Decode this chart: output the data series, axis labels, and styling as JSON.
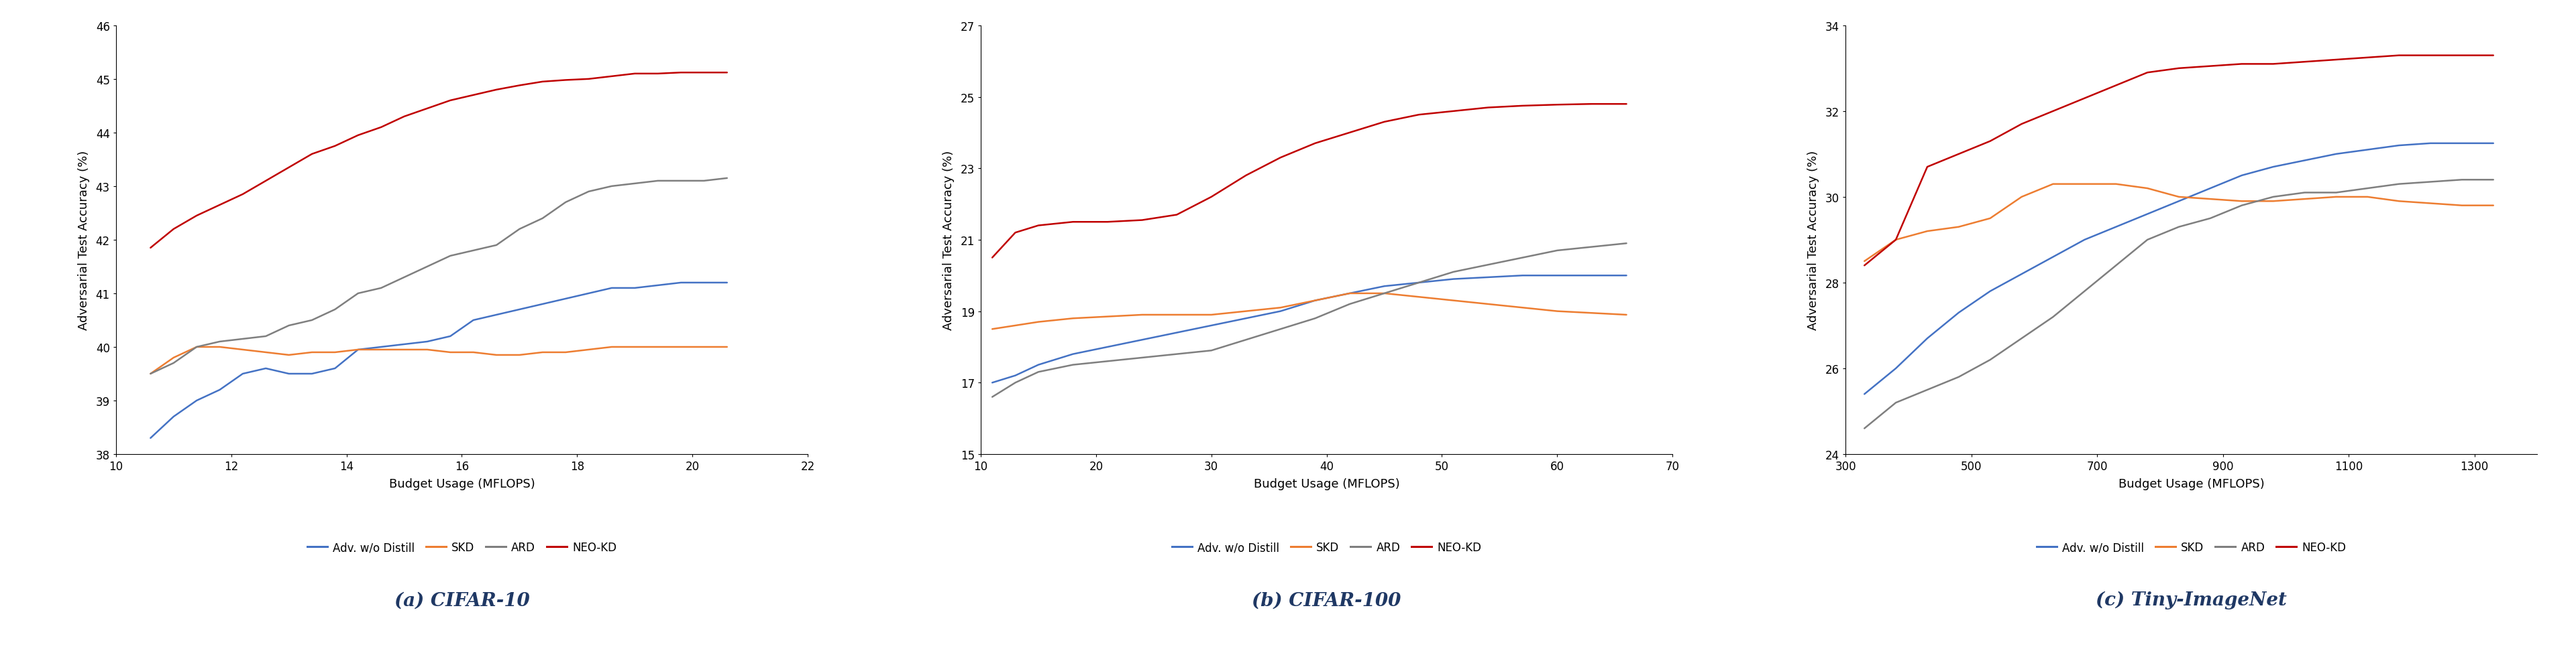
{
  "cifar10": {
    "title": "(a) CIFAR-10",
    "xlabel": "Budget Usage (MFLOPS)",
    "ylabel": "Adversarial Test Accuracy (%)",
    "xlim": [
      10,
      22
    ],
    "ylim": [
      38,
      46
    ],
    "xticks": [
      10,
      12,
      14,
      16,
      18,
      20,
      22
    ],
    "yticks": [
      38,
      39,
      40,
      41,
      42,
      43,
      44,
      45,
      46
    ],
    "series": {
      "Adv. w/o Distill": {
        "color": "#4472C4",
        "x": [
          10.6,
          11.0,
          11.4,
          11.8,
          12.2,
          12.6,
          13.0,
          13.4,
          13.8,
          14.2,
          14.6,
          15.0,
          15.4,
          15.8,
          16.2,
          16.6,
          17.0,
          17.4,
          17.8,
          18.2,
          18.6,
          19.0,
          19.4,
          19.8,
          20.2,
          20.6
        ],
        "y": [
          38.3,
          38.7,
          39.0,
          39.2,
          39.5,
          39.6,
          39.5,
          39.5,
          39.6,
          39.95,
          40.0,
          40.05,
          40.1,
          40.2,
          40.5,
          40.6,
          40.7,
          40.8,
          40.9,
          41.0,
          41.1,
          41.1,
          41.15,
          41.2,
          41.2,
          41.2
        ]
      },
      "SKD": {
        "color": "#ED7D31",
        "x": [
          10.6,
          11.0,
          11.4,
          11.8,
          12.2,
          12.6,
          13.0,
          13.4,
          13.8,
          14.2,
          14.6,
          15.0,
          15.4,
          15.8,
          16.2,
          16.6,
          17.0,
          17.4,
          17.8,
          18.2,
          18.6,
          19.0,
          19.4,
          19.8,
          20.2,
          20.6
        ],
        "y": [
          39.5,
          39.8,
          40.0,
          40.0,
          39.95,
          39.9,
          39.85,
          39.9,
          39.9,
          39.95,
          39.95,
          39.95,
          39.95,
          39.9,
          39.9,
          39.85,
          39.85,
          39.9,
          39.9,
          39.95,
          40.0,
          40.0,
          40.0,
          40.0,
          40.0,
          40.0
        ]
      },
      "ARD": {
        "color": "#7F7F7F",
        "x": [
          10.6,
          11.0,
          11.4,
          11.8,
          12.2,
          12.6,
          13.0,
          13.4,
          13.8,
          14.2,
          14.6,
          15.0,
          15.4,
          15.8,
          16.2,
          16.6,
          17.0,
          17.4,
          17.8,
          18.2,
          18.6,
          19.0,
          19.4,
          19.8,
          20.2,
          20.6
        ],
        "y": [
          39.5,
          39.7,
          40.0,
          40.1,
          40.15,
          40.2,
          40.4,
          40.5,
          40.7,
          41.0,
          41.1,
          41.3,
          41.5,
          41.7,
          41.8,
          41.9,
          42.2,
          42.4,
          42.7,
          42.9,
          43.0,
          43.05,
          43.1,
          43.1,
          43.1,
          43.15
        ]
      },
      "NEO-KD": {
        "color": "#C00000",
        "x": [
          10.6,
          11.0,
          11.4,
          11.8,
          12.2,
          12.6,
          13.0,
          13.4,
          13.8,
          14.2,
          14.6,
          15.0,
          15.4,
          15.8,
          16.2,
          16.6,
          17.0,
          17.4,
          17.8,
          18.2,
          18.6,
          19.0,
          19.4,
          19.8,
          20.2,
          20.6
        ],
        "y": [
          41.85,
          42.2,
          42.45,
          42.65,
          42.85,
          43.1,
          43.35,
          43.6,
          43.75,
          43.95,
          44.1,
          44.3,
          44.45,
          44.6,
          44.7,
          44.8,
          44.88,
          44.95,
          44.98,
          45.0,
          45.05,
          45.1,
          45.1,
          45.12,
          45.12,
          45.12
        ]
      }
    }
  },
  "cifar100": {
    "title": "(b) CIFAR-100",
    "xlabel": "Budget Usage (MFLOPS)",
    "ylabel": "Adversarial Test Accuracy (%)",
    "xlim": [
      10,
      70
    ],
    "ylim": [
      15,
      27
    ],
    "xticks": [
      10,
      20,
      30,
      40,
      50,
      60,
      70
    ],
    "yticks": [
      15,
      17,
      19,
      21,
      23,
      25,
      27
    ],
    "series": {
      "Adv. w/o Distill": {
        "color": "#4472C4",
        "x": [
          11,
          13,
          15,
          18,
          21,
          24,
          27,
          30,
          33,
          36,
          39,
          42,
          45,
          48,
          51,
          54,
          57,
          60,
          63,
          66
        ],
        "y": [
          17.0,
          17.2,
          17.5,
          17.8,
          18.0,
          18.2,
          18.4,
          18.6,
          18.8,
          19.0,
          19.3,
          19.5,
          19.7,
          19.8,
          19.9,
          19.95,
          20.0,
          20.0,
          20.0,
          20.0
        ]
      },
      "SKD": {
        "color": "#ED7D31",
        "x": [
          11,
          13,
          15,
          18,
          21,
          24,
          27,
          30,
          33,
          36,
          39,
          42,
          45,
          48,
          51,
          54,
          57,
          60,
          63,
          66
        ],
        "y": [
          18.5,
          18.6,
          18.7,
          18.8,
          18.85,
          18.9,
          18.9,
          18.9,
          19.0,
          19.1,
          19.3,
          19.5,
          19.5,
          19.4,
          19.3,
          19.2,
          19.1,
          19.0,
          18.95,
          18.9
        ]
      },
      "ARD": {
        "color": "#7F7F7F",
        "x": [
          11,
          13,
          15,
          18,
          21,
          24,
          27,
          30,
          33,
          36,
          39,
          42,
          45,
          48,
          51,
          54,
          57,
          60,
          63,
          66
        ],
        "y": [
          16.6,
          17.0,
          17.3,
          17.5,
          17.6,
          17.7,
          17.8,
          17.9,
          18.2,
          18.5,
          18.8,
          19.2,
          19.5,
          19.8,
          20.1,
          20.3,
          20.5,
          20.7,
          20.8,
          20.9
        ]
      },
      "NEO-KD": {
        "color": "#C00000",
        "x": [
          11,
          13,
          15,
          18,
          21,
          24,
          27,
          30,
          33,
          36,
          39,
          42,
          45,
          48,
          51,
          54,
          57,
          60,
          63,
          66
        ],
        "y": [
          20.5,
          21.2,
          21.4,
          21.5,
          21.5,
          21.55,
          21.7,
          22.2,
          22.8,
          23.3,
          23.7,
          24.0,
          24.3,
          24.5,
          24.6,
          24.7,
          24.75,
          24.78,
          24.8,
          24.8
        ]
      }
    }
  },
  "tiny_imagenet": {
    "title": "(c) Tiny-ImageNet",
    "xlabel": "Budget Usage (MFLOPS)",
    "ylabel": "Adversarial Test Accuracy (%)",
    "xlim": [
      300,
      1400
    ],
    "ylim": [
      24,
      34
    ],
    "xticks": [
      300,
      500,
      700,
      900,
      1100,
      1300
    ],
    "yticks": [
      24,
      26,
      28,
      30,
      32,
      34
    ],
    "series": {
      "Adv. w/o Distill": {
        "color": "#4472C4",
        "x": [
          330,
          380,
          430,
          480,
          530,
          580,
          630,
          680,
          730,
          780,
          830,
          880,
          930,
          980,
          1030,
          1080,
          1130,
          1180,
          1230,
          1280,
          1330
        ],
        "y": [
          25.4,
          26.0,
          26.7,
          27.3,
          27.8,
          28.2,
          28.6,
          29.0,
          29.3,
          29.6,
          29.9,
          30.2,
          30.5,
          30.7,
          30.85,
          31.0,
          31.1,
          31.2,
          31.25,
          31.25,
          31.25
        ]
      },
      "SKD": {
        "color": "#ED7D31",
        "x": [
          330,
          380,
          430,
          480,
          530,
          580,
          630,
          680,
          730,
          780,
          830,
          880,
          930,
          980,
          1030,
          1080,
          1130,
          1180,
          1230,
          1280,
          1330
        ],
        "y": [
          28.5,
          29.0,
          29.2,
          29.3,
          29.5,
          30.0,
          30.3,
          30.3,
          30.3,
          30.2,
          30.0,
          29.95,
          29.9,
          29.9,
          29.95,
          30.0,
          30.0,
          29.9,
          29.85,
          29.8,
          29.8
        ]
      },
      "ARD": {
        "color": "#7F7F7F",
        "x": [
          330,
          380,
          430,
          480,
          530,
          580,
          630,
          680,
          730,
          780,
          830,
          880,
          930,
          980,
          1030,
          1080,
          1130,
          1180,
          1230,
          1280,
          1330
        ],
        "y": [
          24.6,
          25.2,
          25.5,
          25.8,
          26.2,
          26.7,
          27.2,
          27.8,
          28.4,
          29.0,
          29.3,
          29.5,
          29.8,
          30.0,
          30.1,
          30.1,
          30.2,
          30.3,
          30.35,
          30.4,
          30.4
        ]
      },
      "NEO-KD": {
        "color": "#C00000",
        "x": [
          330,
          380,
          430,
          480,
          530,
          580,
          630,
          680,
          730,
          780,
          830,
          880,
          930,
          980,
          1030,
          1080,
          1130,
          1180,
          1230,
          1280,
          1330
        ],
        "y": [
          28.4,
          29.0,
          30.7,
          31.0,
          31.3,
          31.7,
          32.0,
          32.3,
          32.6,
          32.9,
          33.0,
          33.05,
          33.1,
          33.1,
          33.15,
          33.2,
          33.25,
          33.3,
          33.3,
          33.3,
          33.3
        ]
      }
    }
  },
  "legend_labels": [
    "Adv. w/o Distill",
    "SKD",
    "ARD",
    "NEO-KD"
  ],
  "legend_colors": [
    "#4472C4",
    "#ED7D31",
    "#7F7F7F",
    "#C00000"
  ],
  "line_width": 1.8,
  "background_color": "#FFFFFF",
  "subtitle_fontsize": 20,
  "axis_label_fontsize": 13,
  "tick_fontsize": 12,
  "legend_fontsize": 12,
  "title_color": "#1F3864"
}
